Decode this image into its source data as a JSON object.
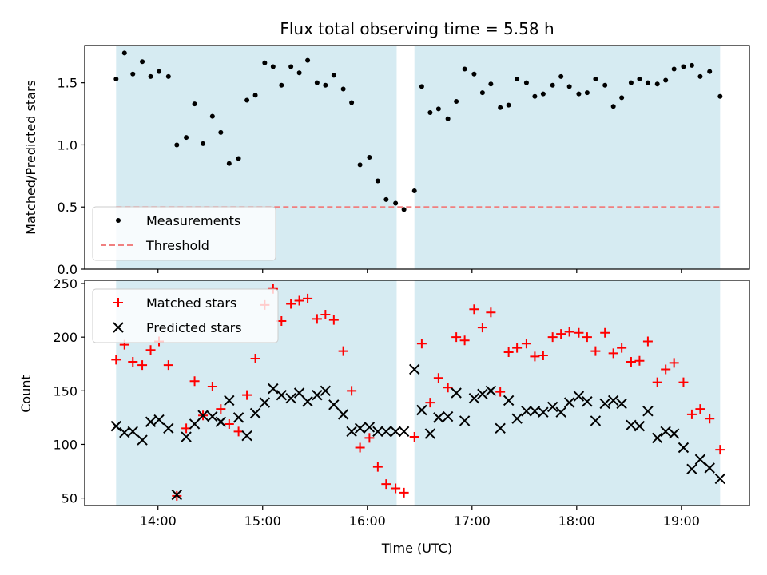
{
  "chart_data": [
    {
      "type": "scatter",
      "title": "Flux total observing time = 5.58 h",
      "xlabel": "",
      "ylabel": "Matched/Predicted stars",
      "ylim": [
        0,
        1.8
      ],
      "yticks": [
        0.0,
        0.5,
        1.0,
        1.5
      ],
      "ytick_labels": [
        "0.0",
        "0.5",
        "1.0",
        "1.5"
      ],
      "xlim_hours": [
        13.3,
        19.65
      ],
      "xticks_hours": [
        14,
        15,
        16,
        17,
        18,
        19
      ],
      "xtick_labels": [],
      "shaded_intervals_hours": [
        [
          13.6,
          16.28
        ],
        [
          16.45,
          19.37
        ]
      ],
      "shade_color": "#add8e6",
      "legend": "lower-left",
      "series": [
        {
          "name": "Measurements",
          "marker": "dot",
          "color": "#000000",
          "x": [
            13.6,
            13.68,
            13.76,
            13.85,
            13.93,
            14.01,
            14.1,
            14.18,
            14.27,
            14.35,
            14.43,
            14.52,
            14.6,
            14.68,
            14.77,
            14.85,
            14.93,
            15.02,
            15.1,
            15.18,
            15.27,
            15.35,
            15.43,
            15.52,
            15.6,
            15.68,
            15.77,
            15.85,
            15.93,
            16.02,
            16.1,
            16.18,
            16.27,
            16.35,
            16.45,
            16.52,
            16.6,
            16.68,
            16.77,
            16.85,
            16.93,
            17.02,
            17.1,
            17.18,
            17.27,
            17.35,
            17.43,
            17.52,
            17.6,
            17.68,
            17.77,
            17.85,
            17.93,
            18.02,
            18.1,
            18.18,
            18.27,
            18.35,
            18.43,
            18.52,
            18.6,
            18.68,
            18.77,
            18.85,
            18.93,
            19.02,
            19.1,
            19.18,
            19.27,
            19.37
          ],
          "values": [
            1.53,
            1.74,
            1.57,
            1.67,
            1.55,
            1.59,
            1.55,
            1.0,
            1.06,
            1.33,
            1.01,
            1.23,
            1.1,
            0.85,
            0.89,
            1.36,
            1.4,
            1.66,
            1.63,
            1.48,
            1.63,
            1.58,
            1.68,
            1.5,
            1.48,
            1.56,
            1.45,
            1.34,
            0.84,
            0.9,
            0.71,
            0.56,
            0.53,
            0.48,
            0.63,
            1.47,
            1.26,
            1.29,
            1.21,
            1.35,
            1.61,
            1.57,
            1.42,
            1.49,
            1.3,
            1.32,
            1.53,
            1.5,
            1.39,
            1.41,
            1.48,
            1.55,
            1.47,
            1.41,
            1.42,
            1.53,
            1.48,
            1.31,
            1.38,
            1.5,
            1.53,
            1.5,
            1.49,
            1.52,
            1.61,
            1.63,
            1.64,
            1.55,
            1.59,
            1.39
          ]
        },
        {
          "name": "Threshold",
          "marker": "dashed-line",
          "color": "#f08080",
          "x": [
            13.6,
            19.37
          ],
          "values": [
            0.5,
            0.5
          ]
        }
      ]
    },
    {
      "type": "scatter",
      "title": "",
      "xlabel": "Time (UTC)",
      "ylabel": "Count",
      "ylim": [
        43,
        253
      ],
      "yticks": [
        50,
        100,
        150,
        200,
        250
      ],
      "ytick_labels": [
        "50",
        "100",
        "150",
        "200",
        "250"
      ],
      "xlim_hours": [
        13.3,
        19.65
      ],
      "xticks_hours": [
        14,
        15,
        16,
        17,
        18,
        19
      ],
      "xtick_labels": [
        "14:00",
        "15:00",
        "16:00",
        "17:00",
        "18:00",
        "19:00"
      ],
      "shaded_intervals_hours": [
        [
          13.6,
          16.28
        ],
        [
          16.45,
          19.37
        ]
      ],
      "shade_color": "#add8e6",
      "legend": "upper-left",
      "series": [
        {
          "name": "Matched stars",
          "marker": "plus",
          "color": "#ff0000",
          "x": [
            13.6,
            13.68,
            13.76,
            13.85,
            13.93,
            14.01,
            14.1,
            14.18,
            14.27,
            14.35,
            14.43,
            14.52,
            14.6,
            14.68,
            14.77,
            14.85,
            14.93,
            15.02,
            15.1,
            15.18,
            15.27,
            15.35,
            15.43,
            15.52,
            15.6,
            15.68,
            15.77,
            15.85,
            15.93,
            16.02,
            16.1,
            16.18,
            16.27,
            16.35,
            16.45,
            16.52,
            16.6,
            16.68,
            16.77,
            16.85,
            16.93,
            17.02,
            17.1,
            17.18,
            17.27,
            17.35,
            17.43,
            17.52,
            17.6,
            17.68,
            17.77,
            17.85,
            17.93,
            18.02,
            18.1,
            18.18,
            18.27,
            18.35,
            18.43,
            18.52,
            18.6,
            18.68,
            18.77,
            18.85,
            18.93,
            19.02,
            19.1,
            19.18,
            19.27,
            19.37
          ],
          "values": [
            179,
            193,
            177,
            174,
            188,
            196,
            174,
            52,
            115,
            159,
            127,
            154,
            133,
            119,
            112,
            146,
            180,
            230,
            245,
            215,
            231,
            234,
            236,
            217,
            221,
            216,
            187,
            150,
            97,
            106,
            79,
            63,
            59,
            55,
            107,
            194,
            139,
            162,
            153,
            200,
            197,
            226,
            209,
            223,
            149,
            186,
            190,
            194,
            182,
            183,
            200,
            203,
            205,
            204,
            200,
            187,
            204,
            185,
            190,
            177,
            178,
            196,
            158,
            170,
            176,
            158,
            128,
            133,
            124,
            95
          ]
        },
        {
          "name": "Predicted stars",
          "marker": "x",
          "color": "#000000",
          "x": [
            13.6,
            13.68,
            13.76,
            13.85,
            13.93,
            14.01,
            14.1,
            14.18,
            14.27,
            14.35,
            14.43,
            14.52,
            14.6,
            14.68,
            14.77,
            14.85,
            14.93,
            15.02,
            15.1,
            15.18,
            15.27,
            15.35,
            15.43,
            15.52,
            15.6,
            15.68,
            15.77,
            15.85,
            15.93,
            16.02,
            16.1,
            16.18,
            16.27,
            16.35,
            16.45,
            16.52,
            16.6,
            16.68,
            16.77,
            16.85,
            16.93,
            17.02,
            17.1,
            17.18,
            17.27,
            17.35,
            17.43,
            17.52,
            17.6,
            17.68,
            17.77,
            17.85,
            17.93,
            18.02,
            18.1,
            18.18,
            18.27,
            18.35,
            18.43,
            18.52,
            18.6,
            18.68,
            18.77,
            18.85,
            18.93,
            19.02,
            19.1,
            19.18,
            19.27,
            19.37
          ],
          "values": [
            117,
            111,
            112,
            104,
            121,
            123,
            115,
            53,
            107,
            119,
            127,
            126,
            121,
            141,
            125,
            108,
            129,
            139,
            152,
            146,
            143,
            148,
            140,
            146,
            150,
            137,
            128,
            112,
            115,
            116,
            112,
            112,
            112,
            112,
            170,
            132,
            110,
            125,
            126,
            148,
            122,
            143,
            147,
            150,
            115,
            141,
            124,
            131,
            131,
            130,
            135,
            130,
            139,
            145,
            140,
            122,
            138,
            141,
            138,
            118,
            117,
            131,
            106,
            112,
            110,
            97,
            77,
            86,
            78,
            68
          ]
        }
      ]
    }
  ]
}
